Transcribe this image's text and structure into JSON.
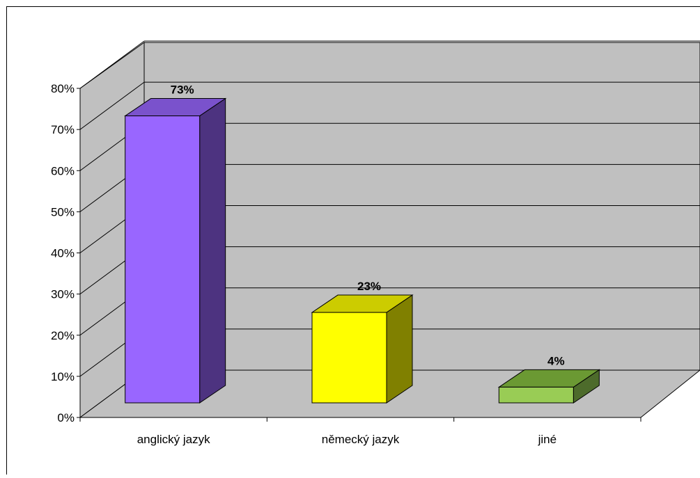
{
  "chart_data": {
    "type": "bar",
    "style": "3d-column",
    "categories": [
      "anglický jazyk",
      "německý jazyk",
      "jiné"
    ],
    "values": [
      73,
      23,
      4
    ],
    "data_labels": [
      "73%",
      "23%",
      "4%"
    ],
    "yticks": [
      "0%",
      "10%",
      "20%",
      "30%",
      "40%",
      "50%",
      "60%",
      "70%",
      "80%"
    ],
    "ylim": [
      0,
      80
    ],
    "grid": true,
    "legend": "none",
    "title": "",
    "xlabel": "",
    "ylabel": "",
    "colors": {
      "wall": "#c0c0c0",
      "floor": "#c0c0c0",
      "series": [
        {
          "front": "#9966ff",
          "top": "#7a52cc",
          "side": "#4d3380"
        },
        {
          "front": "#ffff00",
          "top": "#cccc00",
          "side": "#808000"
        },
        {
          "front": "#99cc55",
          "top": "#6b9933",
          "side": "#4d6b2b"
        }
      ]
    }
  }
}
